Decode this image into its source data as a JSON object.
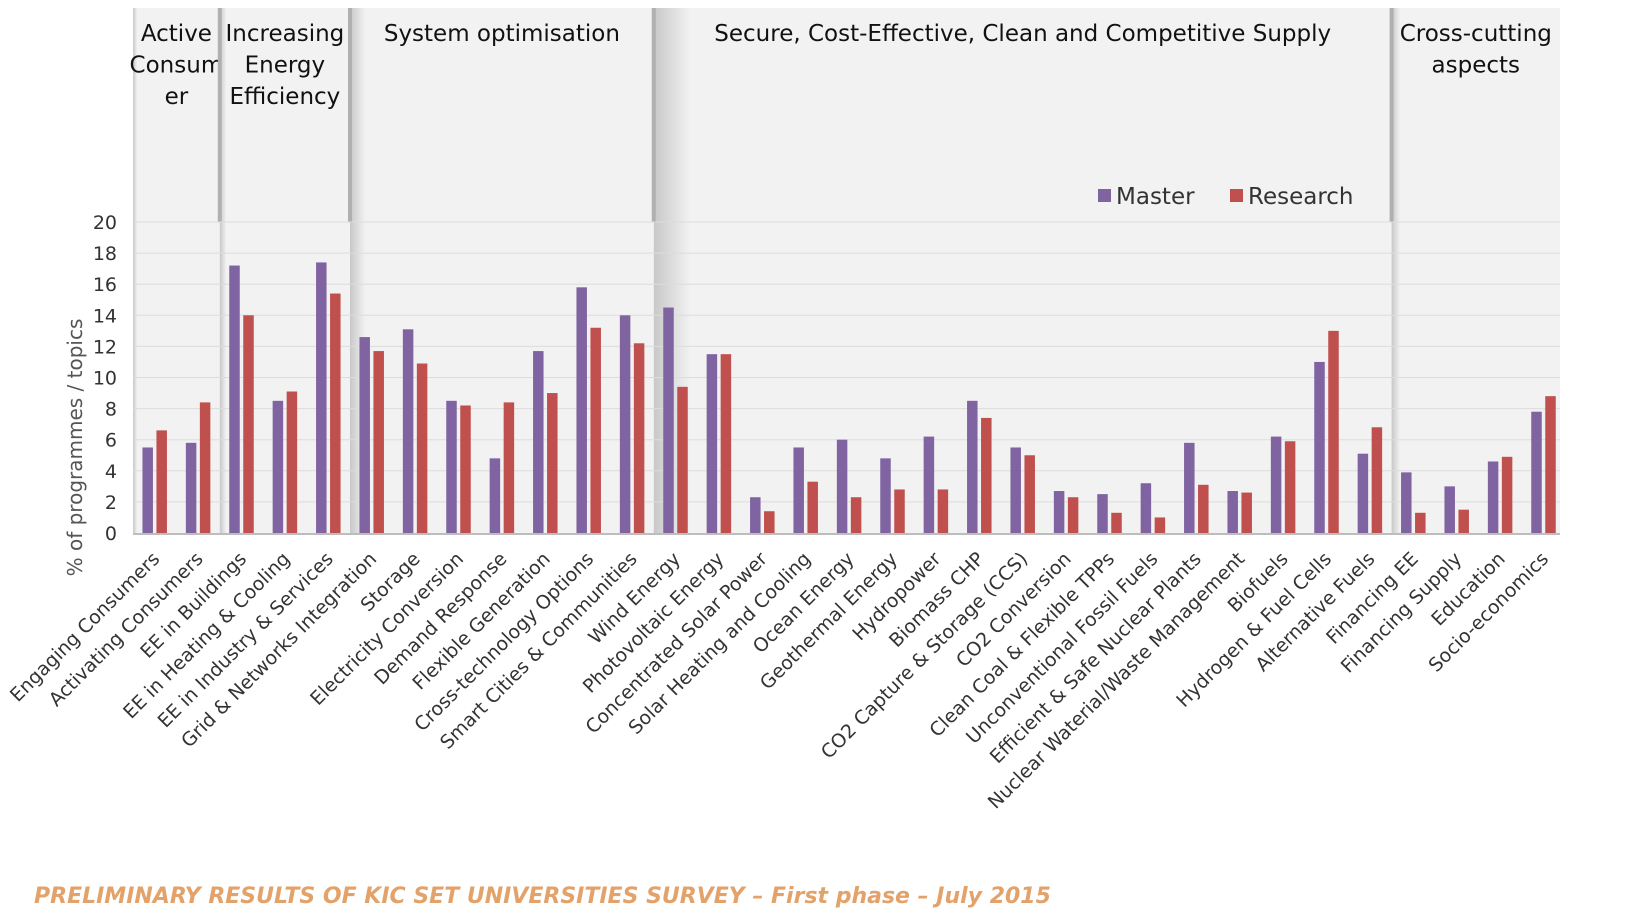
{
  "chart_data": {
    "type": "bar",
    "ylabel": "% of programmes / topics",
    "ylim": [
      0,
      20
    ],
    "yticks": [
      0,
      2,
      4,
      6,
      8,
      10,
      12,
      14,
      16,
      18,
      20
    ],
    "grid": true,
    "legend_position": "top-right",
    "colors": {
      "Master": "#8064a2",
      "Research": "#c0504d"
    },
    "groups": [
      {
        "label": [
          "Active",
          "Consum",
          "er"
        ],
        "categories": [
          "Engaging Consumers",
          "Activating Consumers"
        ]
      },
      {
        "label": [
          "Increasing",
          "Energy",
          "Efficiency"
        ],
        "categories": [
          "EE in Buildings",
          "EE in Heating & Cooling",
          "EE in Industry & Services"
        ]
      },
      {
        "label": [
          "System optimisation"
        ],
        "categories": [
          "Grid & Networks Integration",
          "Storage",
          "Electricity Conversion",
          "Demand Response",
          "Flexible Generation",
          "Cross-technology Options",
          "Smart Cities & Communities"
        ]
      },
      {
        "label": [
          "Secure, Cost-Effective, Clean and Competitive Supply"
        ],
        "categories": [
          "Wind Energy",
          "Photovoltaic Energy",
          "Concentrated Solar Power",
          "Solar Heating and Cooling",
          "Ocean Energy",
          "Geothermal Energy",
          "Hydropower",
          "Biomass CHP",
          "CO2 Capture & Storage (CCS)",
          "CO2 Conversion",
          "Clean Coal & Flexible TPPs",
          "Unconventional Fossil Fuels",
          "Efficient & Safe Nuclear Plants",
          "Nuclear Waterial/Waste Management",
          "Biofuels",
          "Hydrogen & Fuel Cells",
          "Alternative Fuels"
        ]
      },
      {
        "label": [
          "Cross-cutting",
          "aspects"
        ],
        "categories": [
          "Financing EE",
          "Financing Supply",
          "Education",
          "Socio-economics"
        ]
      }
    ],
    "categories": [
      "Engaging Consumers",
      "Activating Consumers",
      "EE in Buildings",
      "EE in Heating & Cooling",
      "EE in Industry & Services",
      "Grid & Networks Integration",
      "Storage",
      "Electricity Conversion",
      "Demand Response",
      "Flexible Generation",
      "Cross-technology Options",
      "Smart Cities & Communities",
      "Wind Energy",
      "Photovoltaic Energy",
      "Concentrated Solar Power",
      "Solar Heating and Cooling",
      "Ocean Energy",
      "Geothermal Energy",
      "Hydropower",
      "Biomass CHP",
      "CO2 Capture & Storage (CCS)",
      "CO2 Conversion",
      "Clean Coal & Flexible TPPs",
      "Unconventional Fossil Fuels",
      "Efficient & Safe Nuclear Plants",
      "Nuclear Waterial/Waste Management",
      "Biofuels",
      "Hydrogen & Fuel Cells",
      "Alternative Fuels",
      "Financing EE",
      "Financing Supply",
      "Education",
      "Socio-economics"
    ],
    "series": [
      {
        "name": "Master",
        "values": [
          5.5,
          5.8,
          17.2,
          8.5,
          17.4,
          12.6,
          13.1,
          8.5,
          4.8,
          11.7,
          15.8,
          14.0,
          14.5,
          11.5,
          2.3,
          5.5,
          6.0,
          4.8,
          6.2,
          8.5,
          5.5,
          2.7,
          2.5,
          3.2,
          5.8,
          2.7,
          6.2,
          11.0,
          5.1,
          3.9,
          3.0,
          4.6,
          7.8
        ]
      },
      {
        "name": "Research",
        "values": [
          6.6,
          8.4,
          14.0,
          9.1,
          15.4,
          11.7,
          10.9,
          8.2,
          8.4,
          9.0,
          13.2,
          12.2,
          9.4,
          11.5,
          1.4,
          3.3,
          2.3,
          2.8,
          2.8,
          7.4,
          5.0,
          2.3,
          1.3,
          1.0,
          3.1,
          2.6,
          5.9,
          13.0,
          6.8,
          1.3,
          1.5,
          4.9,
          8.8
        ]
      }
    ]
  },
  "footer": "PRELIMINARY RESULTS OF KIC SET UNIVERSITIES SURVEY – First phase – July 2015"
}
